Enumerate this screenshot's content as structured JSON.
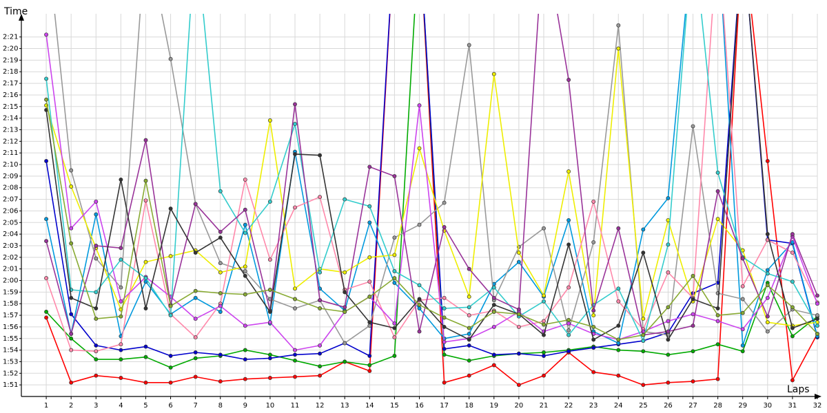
{
  "chart_data": {
    "type": "line",
    "xlabel": "Laps",
    "ylabel": "Time",
    "grid": true,
    "xlim": [
      0,
      32
    ],
    "ylim": [
      110,
      143
    ],
    "x_ticks": [
      1,
      2,
      3,
      4,
      5,
      6,
      7,
      8,
      9,
      10,
      11,
      12,
      13,
      14,
      15,
      16,
      17,
      18,
      19,
      20,
      21,
      22,
      23,
      24,
      25,
      26,
      27,
      28,
      29,
      30,
      31,
      32
    ],
    "y_ticks": [
      {
        "v": 111,
        "label": "1:51"
      },
      {
        "v": 112,
        "label": "1:52"
      },
      {
        "v": 113,
        "label": "1:53"
      },
      {
        "v": 114,
        "label": "1:54"
      },
      {
        "v": 115,
        "label": "1:55"
      },
      {
        "v": 116,
        "label": "1:56"
      },
      {
        "v": 117,
        "label": "1:57"
      },
      {
        "v": 118,
        "label": "1:58"
      },
      {
        "v": 119,
        "label": "1:59"
      },
      {
        "v": 120,
        "label": "2:00"
      },
      {
        "v": 121,
        "label": "2:01"
      },
      {
        "v": 122,
        "label": "2:02"
      },
      {
        "v": 123,
        "label": "2:03"
      },
      {
        "v": 124,
        "label": "2:04"
      },
      {
        "v": 125,
        "label": "2:05"
      },
      {
        "v": 126,
        "label": "2:06"
      },
      {
        "v": 127,
        "label": "2:07"
      },
      {
        "v": 128,
        "label": "2:08"
      },
      {
        "v": 129,
        "label": "2:09"
      },
      {
        "v": 130,
        "label": "2:10"
      },
      {
        "v": 131,
        "label": "2:11"
      },
      {
        "v": 132,
        "label": "2:12"
      },
      {
        "v": 133,
        "label": "2:13"
      },
      {
        "v": 134,
        "label": "2:14"
      },
      {
        "v": 135,
        "label": "2:15"
      },
      {
        "v": 136,
        "label": "2:16"
      },
      {
        "v": 137,
        "label": "2:17"
      },
      {
        "v": 138,
        "label": "2:18"
      },
      {
        "v": 139,
        "label": "2:19"
      },
      {
        "v": 140,
        "label": "2:20"
      },
      {
        "v": 141,
        "label": "2:21"
      }
    ],
    "series": [
      {
        "color": "#ff0000",
        "x": [
          1,
          2,
          3,
          4,
          5,
          6,
          7,
          8,
          9,
          10,
          11,
          12,
          13,
          14,
          15,
          16,
          17,
          18,
          19,
          20,
          21,
          22,
          23,
          24,
          25,
          26,
          27,
          28,
          29,
          30,
          31,
          32
        ],
        "y": [
          116.8,
          111.2,
          111.8,
          111.6,
          111.2,
          111.2,
          111.7,
          111.3,
          111.5,
          111.6,
          111.7,
          111.8,
          113.0,
          112.2,
          150,
          150,
          111.2,
          111.8,
          112.7,
          111.0,
          111.8,
          113.8,
          112.1,
          111.8,
          111.0,
          111.2,
          111.3,
          111.5,
          150,
          130.3,
          111.4,
          115.4
        ]
      },
      {
        "color": "#00aa00",
        "x": [
          1,
          2,
          3,
          4,
          5,
          6,
          7,
          8,
          9,
          10,
          11,
          12,
          13,
          14,
          15,
          16,
          17,
          18,
          19,
          20,
          21,
          22,
          23,
          24,
          25,
          26,
          27,
          28,
          29,
          30,
          31,
          32
        ],
        "y": [
          117.3,
          115.0,
          113.2,
          113.2,
          113.4,
          112.5,
          113.3,
          113.5,
          114.0,
          113.6,
          113.1,
          112.6,
          113.0,
          112.7,
          113.5,
          150,
          113.6,
          113.1,
          113.5,
          113.7,
          113.8,
          114.0,
          114.3,
          114.0,
          113.9,
          113.6,
          113.9,
          114.5,
          113.9,
          119.8,
          115.2,
          116.9
        ]
      },
      {
        "color": "#0000cc",
        "x": [
          1,
          2,
          3,
          4,
          5,
          6,
          7,
          8,
          9,
          10,
          11,
          12,
          13,
          14,
          15,
          16,
          17,
          18,
          19,
          20,
          21,
          22,
          23,
          24,
          25,
          26,
          27,
          28,
          29,
          30,
          31,
          32
        ],
        "y": [
          130.3,
          117.1,
          114.4,
          114.0,
          114.3,
          113.5,
          113.8,
          113.6,
          113.2,
          113.3,
          113.6,
          113.7,
          114.6,
          113.5,
          150,
          150,
          114.1,
          114.4,
          113.6,
          113.7,
          113.5,
          113.9,
          114.2,
          114.5,
          114.8,
          115.5,
          118.9,
          119.8,
          150,
          123.5,
          123.2,
          115.1
        ]
      },
      {
        "color": "#0099dd",
        "x": [
          1,
          2,
          3,
          4,
          5,
          6,
          7,
          8,
          9,
          10,
          11,
          12,
          13,
          14,
          15,
          16,
          17,
          18,
          19,
          20,
          21,
          22,
          23,
          24,
          25,
          26,
          27,
          28,
          29,
          30,
          31,
          32
        ],
        "y": [
          125.3,
          115.4,
          125.7,
          115.2,
          119.9,
          117.1,
          118.5,
          117.3,
          124.8,
          116.3,
          131.1,
          119.3,
          117.4,
          125.0,
          119.8,
          117.6,
          115.0,
          115.4,
          119.7,
          121.6,
          118.6,
          125.2,
          115.6,
          114.6,
          124.4,
          127.1,
          150,
          150,
          114.4,
          120.9,
          123.3,
          115.2
        ]
      },
      {
        "color": "#999999",
        "x": [
          1,
          2,
          3,
          4,
          5,
          6,
          7,
          8,
          9,
          10,
          11,
          12,
          13,
          14,
          15,
          16,
          17,
          18,
          19,
          20,
          21,
          22,
          23,
          24,
          25,
          26,
          27,
          28,
          29,
          30,
          31,
          32
        ],
        "y": [
          150,
          129.5,
          121.9,
          119.4,
          150,
          139.1,
          126.6,
          121.5,
          120.8,
          118.4,
          117.6,
          118.3,
          114.6,
          116.1,
          123.7,
          124.8,
          126.7,
          140.3,
          118.3,
          122.9,
          124.5,
          115.7,
          123.3,
          142.0,
          115.6,
          115.3,
          133.3,
          118.9,
          118.4,
          115.6,
          117.5,
          117.0
        ]
      },
      {
        "color": "#eeee00",
        "x": [
          1,
          2,
          3,
          4,
          5,
          6,
          7,
          8,
          9,
          10,
          11,
          12,
          13,
          14,
          15,
          16,
          17,
          18,
          19,
          20,
          21,
          22,
          23,
          24,
          25,
          26,
          27,
          28,
          29,
          30,
          31,
          32
        ],
        "y": [
          135.1,
          128.1,
          122.8,
          117.5,
          121.6,
          122.1,
          122.6,
          120.7,
          121.2,
          133.8,
          119.3,
          121.0,
          120.7,
          122.0,
          122.2,
          131.4,
          124.3,
          118.6,
          137.8,
          122.4,
          118.7,
          129.4,
          117.0,
          140.0,
          116.7,
          125.2,
          118.2,
          125.3,
          122.6,
          116.4,
          116.1,
          116.4
        ]
      },
      {
        "color": "#ff88aa",
        "x": [
          1,
          2,
          3,
          4,
          5,
          6,
          7,
          8,
          9,
          10,
          11,
          12,
          13,
          14,
          15,
          16,
          17,
          18,
          19,
          20,
          21,
          22,
          23,
          24,
          25,
          26,
          27,
          28,
          29,
          30,
          31,
          32
        ],
        "y": [
          120.2,
          114.0,
          113.9,
          114.5,
          126.9,
          117.1,
          115.1,
          118.0,
          128.7,
          121.8,
          126.3,
          127.2,
          119.2,
          119.9,
          115.1,
          118.3,
          118.5,
          117.0,
          117.4,
          116.0,
          116.5,
          119.4,
          126.8,
          118.2,
          115.8,
          120.7,
          118.5,
          150,
          119.5,
          123.5,
          122.4,
          118.1
        ]
      },
      {
        "color": "#cc44ee",
        "x": [
          1,
          2,
          3,
          4,
          5,
          6,
          7,
          8,
          9,
          10,
          11,
          12,
          13,
          14,
          15,
          16,
          17,
          18,
          19,
          20,
          21,
          22,
          23,
          24,
          25,
          26,
          27,
          28,
          29,
          30,
          31,
          32
        ],
        "y": [
          141.2,
          124.5,
          126.8,
          118.2,
          120.3,
          118.6,
          116.7,
          117.8,
          116.1,
          116.4,
          114.0,
          114.4,
          117.3,
          118.6,
          116.3,
          135.1,
          114.7,
          115.0,
          116.0,
          117.3,
          115.6,
          116.3,
          115.4,
          114.9,
          115.6,
          116.5,
          117.1,
          116.5,
          115.8,
          118.5,
          123.8,
          118.0
        ]
      },
      {
        "color": "#33cccc",
        "x": [
          1,
          2,
          3,
          4,
          5,
          6,
          7,
          8,
          9,
          10,
          11,
          12,
          13,
          14,
          15,
          16,
          17,
          18,
          19,
          20,
          21,
          22,
          23,
          24,
          25,
          26,
          27,
          28,
          29,
          30,
          31,
          32
        ],
        "y": [
          137.4,
          119.2,
          119.0,
          121.8,
          120.2,
          117.0,
          150,
          127.7,
          124.1,
          126.8,
          133.5,
          120.7,
          127.0,
          126.4,
          120.8,
          119.6,
          117.6,
          117.7,
          119.4,
          116.9,
          118.2,
          115.3,
          117.9,
          119.3,
          114.8,
          123.1,
          150,
          129.3,
          122.0,
          120.6,
          119.9,
          116.1
        ]
      },
      {
        "color": "#993399",
        "x": [
          1,
          2,
          3,
          4,
          5,
          6,
          7,
          8,
          9,
          10,
          11,
          12,
          13,
          14,
          15,
          16,
          17,
          18,
          19,
          20,
          21,
          22,
          23,
          24,
          25,
          26,
          27,
          28,
          29,
          30,
          31,
          32
        ],
        "y": [
          123.4,
          115.4,
          123.0,
          122.8,
          132.1,
          117.9,
          126.6,
          124.2,
          126.1,
          117.4,
          135.2,
          118.3,
          117.7,
          129.8,
          129.0,
          115.6,
          124.6,
          121.0,
          118.5,
          117.5,
          150,
          137.3,
          117.4,
          124.5,
          115.3,
          115.6,
          116.1,
          127.7,
          121.9,
          116.9,
          124.0,
          118.7
        ]
      },
      {
        "color": "#333333",
        "x": [
          1,
          2,
          3,
          4,
          5,
          6,
          7,
          8,
          9,
          10,
          11,
          12,
          13,
          14,
          15,
          16,
          17,
          18,
          19,
          20,
          21,
          22,
          23,
          24,
          25,
          26,
          27,
          28,
          29,
          30,
          31,
          32
        ],
        "y": [
          134.7,
          118.5,
          117.6,
          128.7,
          117.6,
          126.2,
          122.4,
          123.7,
          120.4,
          117.3,
          130.9,
          130.8,
          119.0,
          116.4,
          115.9,
          118.4,
          116.0,
          114.9,
          117.9,
          117.1,
          115.3,
          123.1,
          114.9,
          116.1,
          122.4,
          114.9,
          118.4,
          117.6,
          150,
          124.0,
          115.9,
          116.7
        ]
      },
      {
        "color": "#88aa33",
        "x": [
          1,
          2,
          3,
          4,
          5,
          6,
          7,
          8,
          9,
          10,
          11,
          12,
          13,
          14,
          15,
          16,
          17,
          18,
          19,
          20,
          21,
          22,
          23,
          24,
          25,
          26,
          27,
          28,
          29,
          30,
          31,
          32
        ],
        "y": [
          135.6,
          123.2,
          116.7,
          116.9,
          128.6,
          117.8,
          119.1,
          118.9,
          118.8,
          119.2,
          118.4,
          117.6,
          117.3,
          118.6,
          120.2,
          117.9,
          116.8,
          115.9,
          117.3,
          117.1,
          116.2,
          116.6,
          116.0,
          114.9,
          115.3,
          117.7,
          120.4,
          117.0,
          117.2,
          119.6,
          117.7,
          115.4
        ]
      }
    ]
  }
}
